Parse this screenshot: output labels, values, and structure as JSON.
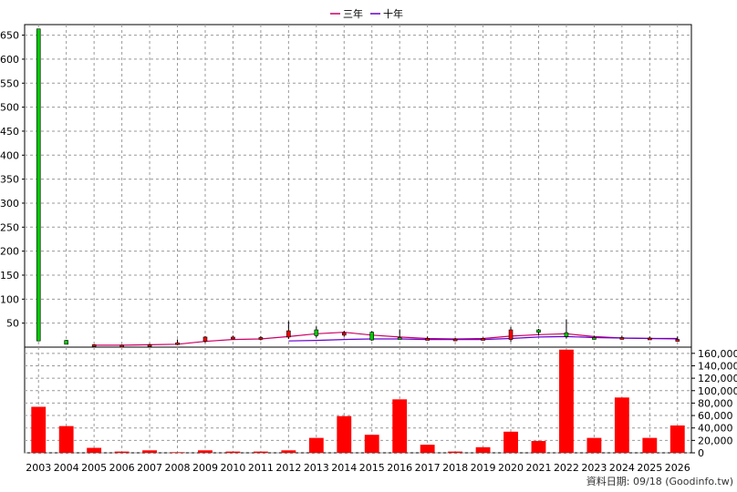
{
  "legend": [
    {
      "label": "三年",
      "color": "#cc0066"
    },
    {
      "label": "十年",
      "color": "#6600cc"
    }
  ],
  "footer_text": "資料日期: 09/18 (Goodinfo.tw)",
  "colors": {
    "rise": "#ff0000",
    "fall": "#00cc00",
    "volume": "#ff0000",
    "grid": "#999999"
  },
  "chart_data": [
    {
      "type": "candlestick",
      "categories": [
        "2003",
        "2004",
        "2005",
        "2006",
        "2007",
        "2008",
        "2009",
        "2010",
        "2011",
        "2012",
        "2013",
        "2014",
        "2015",
        "2016",
        "2017",
        "2018",
        "2019",
        "2020",
        "2021",
        "2022",
        "2023",
        "2024",
        "2025",
        "2026"
      ],
      "y_ticks": [
        50,
        100,
        150,
        200,
        250,
        300,
        350,
        400,
        450,
        500,
        550,
        600,
        650
      ],
      "ylim": [
        0,
        672
      ],
      "grid": true,
      "legend_position": "top-center",
      "candles": [
        {
          "open": 663,
          "close": 13,
          "high": 663,
          "low": 13
        },
        {
          "open": 14,
          "close": 6,
          "high": 15,
          "low": 6
        },
        {
          "open": 4,
          "close": 5,
          "high": 6,
          "low": 3
        },
        {
          "open": 4,
          "close": 4,
          "high": 5,
          "low": 3
        },
        {
          "open": 5,
          "close": 5,
          "high": 7,
          "low": 4
        },
        {
          "open": 6,
          "close": 9,
          "high": 16,
          "low": 4
        },
        {
          "open": 12,
          "close": 21,
          "high": 23,
          "low": 9
        },
        {
          "open": 17,
          "close": 21,
          "high": 24,
          "low": 16
        },
        {
          "open": 17,
          "close": 20,
          "high": 23,
          "low": 14
        },
        {
          "open": 21,
          "close": 34,
          "high": 54,
          "low": 17
        },
        {
          "open": 36,
          "close": 24,
          "high": 43,
          "low": 20
        },
        {
          "open": 25,
          "close": 30,
          "high": 34,
          "low": 22
        },
        {
          "open": 31,
          "close": 15,
          "high": 33,
          "low": 13
        },
        {
          "open": 20,
          "close": 19,
          "high": 37,
          "low": 16
        },
        {
          "open": 18,
          "close": 18,
          "high": 22,
          "low": 15
        },
        {
          "open": 17,
          "close": 17,
          "high": 19,
          "low": 14
        },
        {
          "open": 17,
          "close": 18,
          "high": 20,
          "low": 14
        },
        {
          "open": 16,
          "close": 36,
          "high": 42,
          "low": 11
        },
        {
          "open": 36,
          "close": 31,
          "high": 38,
          "low": 24
        },
        {
          "open": 30,
          "close": 22,
          "high": 58,
          "low": 18
        },
        {
          "open": 20,
          "close": 18,
          "high": 24,
          "low": 16
        },
        {
          "open": 18,
          "close": 20,
          "high": 24,
          "low": 16
        },
        {
          "open": 19,
          "close": 19,
          "high": 22,
          "low": 17
        },
        {
          "open": 16,
          "close": 16,
          "high": 22,
          "low": 14
        }
      ],
      "series": [
        {
          "name": "三年",
          "values": [
            null,
            null,
            4,
            4,
            5,
            6,
            12,
            16,
            17,
            22,
            28,
            31,
            25,
            21,
            18,
            17,
            18,
            23,
            26,
            28,
            22,
            19,
            18,
            17
          ]
        },
        {
          "name": "十年",
          "values": [
            null,
            null,
            null,
            null,
            null,
            null,
            null,
            null,
            null,
            13,
            14,
            16,
            17,
            17,
            16,
            16,
            16,
            18,
            21,
            22,
            20,
            19,
            18,
            18
          ]
        }
      ]
    },
    {
      "type": "bar",
      "categories": [
        "2003",
        "2004",
        "2005",
        "2006",
        "2007",
        "2008",
        "2009",
        "2010",
        "2011",
        "2012",
        "2013",
        "2014",
        "2015",
        "2016",
        "2017",
        "2018",
        "2019",
        "2020",
        "2021",
        "2022",
        "2023",
        "2024",
        "2025",
        "2026"
      ],
      "values": [
        74000,
        43000,
        8000,
        2000,
        4000,
        1000,
        4000,
        2000,
        2000,
        4000,
        24000,
        59000,
        29000,
        86000,
        13000,
        2000,
        9000,
        34000,
        19000,
        166000,
        24000,
        89000,
        24000,
        44000
      ],
      "y_ticks": [
        0,
        20000,
        40000,
        60000,
        80000,
        100000,
        120000,
        140000,
        160000
      ],
      "y_tick_labels": [
        "0",
        "20,000",
        "40,000",
        "60,000",
        "80,000",
        "100,000",
        "120,000",
        "140,000",
        "160,000"
      ],
      "ylim": [
        0,
        170000
      ],
      "grid": true
    }
  ]
}
